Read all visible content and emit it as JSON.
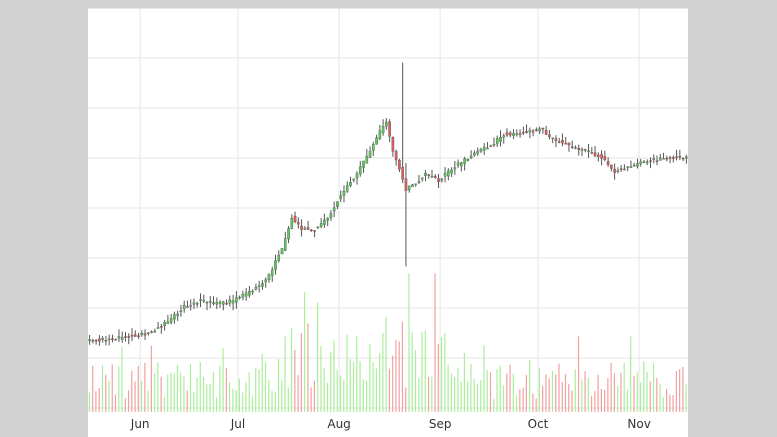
{
  "colors": {
    "background": "#d2d2d2",
    "panel": "#ffffff",
    "grid": "#e6e6e6",
    "up_candle": "#5fc35f",
    "down_candle": "#d95f5f",
    "wick": "#555555",
    "up_volume": "#a9ef9a",
    "down_volume": "#f2a0a0",
    "axis_text": "#333333"
  },
  "chart_data": {
    "type": "candlestick",
    "title": "",
    "xlabel": "",
    "ylabel": "",
    "grid": true,
    "legend": "none",
    "x_ticks": [
      "Jun",
      "Jul",
      "Aug",
      "Sep",
      "Oct",
      "Nov"
    ],
    "x_tick_days": [
      16,
      46,
      77,
      108,
      138,
      169
    ],
    "x_range_days": [
      0,
      184
    ],
    "price_axis_range": [
      0,
      14
    ],
    "volume_axis_range": [
      0,
      100
    ],
    "anchors": [
      [
        0,
        2.4
      ],
      [
        10,
        2.5
      ],
      [
        20,
        2.7
      ],
      [
        25,
        3.1
      ],
      [
        30,
        3.6
      ],
      [
        35,
        3.8
      ],
      [
        40,
        3.7
      ],
      [
        45,
        3.8
      ],
      [
        50,
        4.1
      ],
      [
        55,
        4.5
      ],
      [
        60,
        5.6
      ],
      [
        63,
        6.7
      ],
      [
        66,
        6.3
      ],
      [
        70,
        6.3
      ],
      [
        74,
        6.7
      ],
      [
        78,
        7.5
      ],
      [
        82,
        8.1
      ],
      [
        86,
        8.8
      ],
      [
        90,
        9.7
      ],
      [
        92,
        10.0
      ],
      [
        94,
        9.0
      ],
      [
        96,
        8.4
      ],
      [
        98,
        7.7
      ],
      [
        100,
        7.8
      ],
      [
        104,
        8.2
      ],
      [
        108,
        8.0
      ],
      [
        112,
        8.4
      ],
      [
        116,
        8.7
      ],
      [
        120,
        9.0
      ],
      [
        124,
        9.2
      ],
      [
        128,
        9.6
      ],
      [
        132,
        9.6
      ],
      [
        136,
        9.7
      ],
      [
        140,
        9.8
      ],
      [
        142,
        9.5
      ],
      [
        146,
        9.3
      ],
      [
        150,
        9.1
      ],
      [
        154,
        9.0
      ],
      [
        158,
        8.8
      ],
      [
        162,
        8.3
      ],
      [
        166,
        8.5
      ],
      [
        170,
        8.6
      ],
      [
        174,
        8.7
      ],
      [
        178,
        8.75
      ],
      [
        182,
        8.8
      ],
      [
        184,
        8.8
      ]
    ],
    "spikes": [
      {
        "day": 96,
        "high": 12.1,
        "low": 7.9
      },
      {
        "day": 97,
        "high": 8.6,
        "low": 5.0
      }
    ],
    "volume_peaks": [
      {
        "day": 62,
        "value": 40
      },
      {
        "day": 66,
        "value": 57
      },
      {
        "day": 70,
        "value": 52
      },
      {
        "day": 82,
        "value": 36
      },
      {
        "day": 96,
        "value": 43
      },
      {
        "day": 98,
        "value": 66
      },
      {
        "day": 106,
        "value": 66
      },
      {
        "day": 150,
        "value": 36
      },
      {
        "day": 166,
        "value": 36
      }
    ]
  }
}
